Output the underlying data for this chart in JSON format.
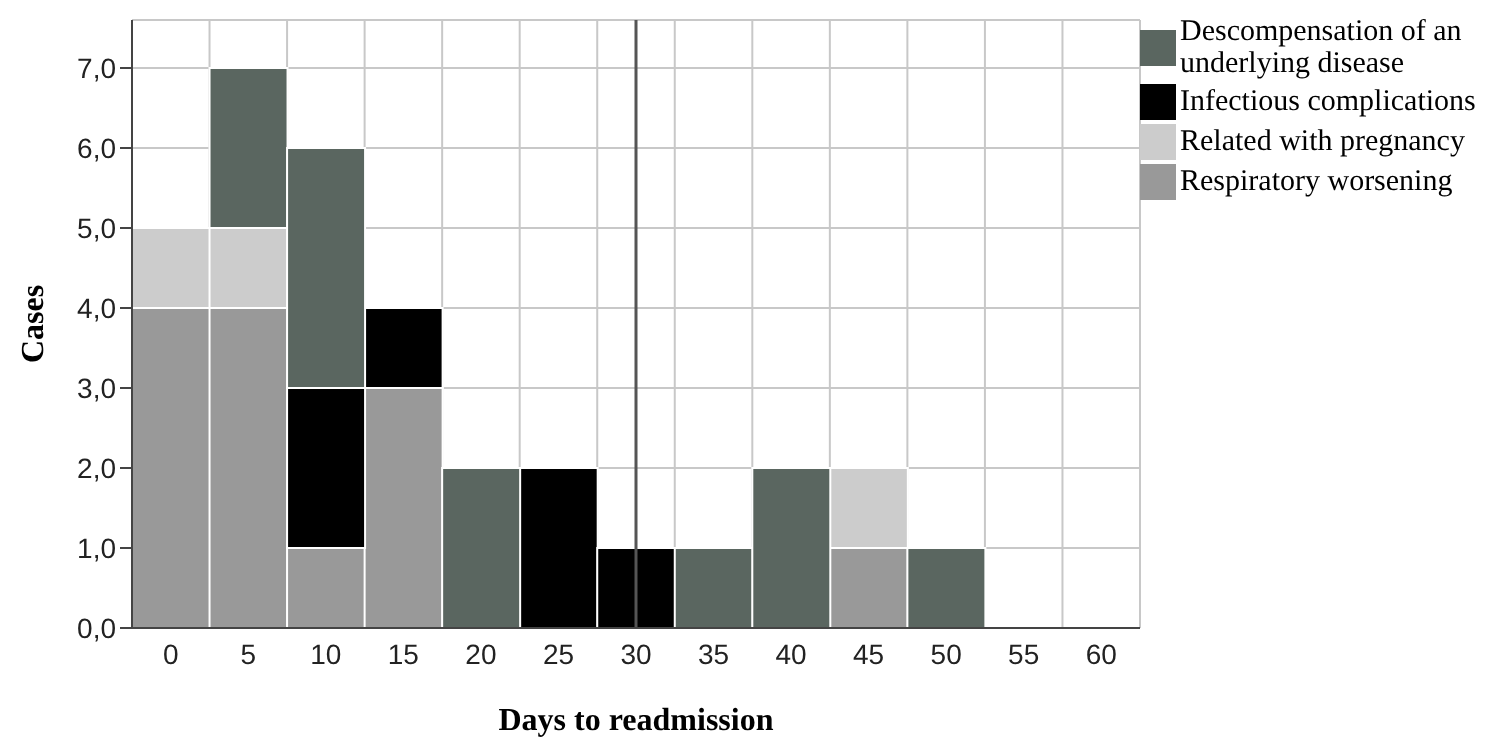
{
  "chart_data": {
    "type": "bar",
    "stacked": true,
    "xlabel": "Days to readmission",
    "ylabel": "Cases",
    "categories": [
      "0",
      "5",
      "10",
      "15",
      "20",
      "25",
      "30",
      "35",
      "40",
      "45",
      "50",
      "55",
      "60"
    ],
    "series": [
      {
        "name": "Respiratory worsening",
        "color": "#999999",
        "values": [
          4,
          4,
          1,
          3,
          0,
          0,
          0,
          0,
          0,
          1,
          0,
          0,
          0
        ]
      },
      {
        "name": "Related with pregnancy",
        "color": "#cccccc",
        "values": [
          1,
          1,
          0,
          0,
          0,
          0,
          0,
          0,
          0,
          1,
          0,
          0,
          0
        ]
      },
      {
        "name": "Infectious complications",
        "color": "#000000",
        "values": [
          0,
          0,
          2,
          1,
          0,
          2,
          1,
          0,
          0,
          0,
          0,
          0,
          0
        ]
      },
      {
        "name": "Descompensation of an underlying disease",
        "color": "#5a6660",
        "values": [
          0,
          2,
          3,
          0,
          2,
          0,
          0,
          1,
          2,
          0,
          1,
          0,
          0
        ]
      }
    ],
    "ylim": [
      0,
      7.6
    ],
    "yticks": [
      {
        "value": 0,
        "label": "0,0"
      },
      {
        "value": 1,
        "label": "1,0"
      },
      {
        "value": 2,
        "label": "2,0"
      },
      {
        "value": 3,
        "label": "3,0"
      },
      {
        "value": 4,
        "label": "4,0"
      },
      {
        "value": 5,
        "label": "5,0"
      },
      {
        "value": 6,
        "label": "6,0"
      },
      {
        "value": 7,
        "label": "7,0"
      }
    ],
    "ref_lines": [
      {
        "axis": "x",
        "value": "30",
        "color": "#555555"
      }
    ],
    "grid": true,
    "legend": "right"
  }
}
